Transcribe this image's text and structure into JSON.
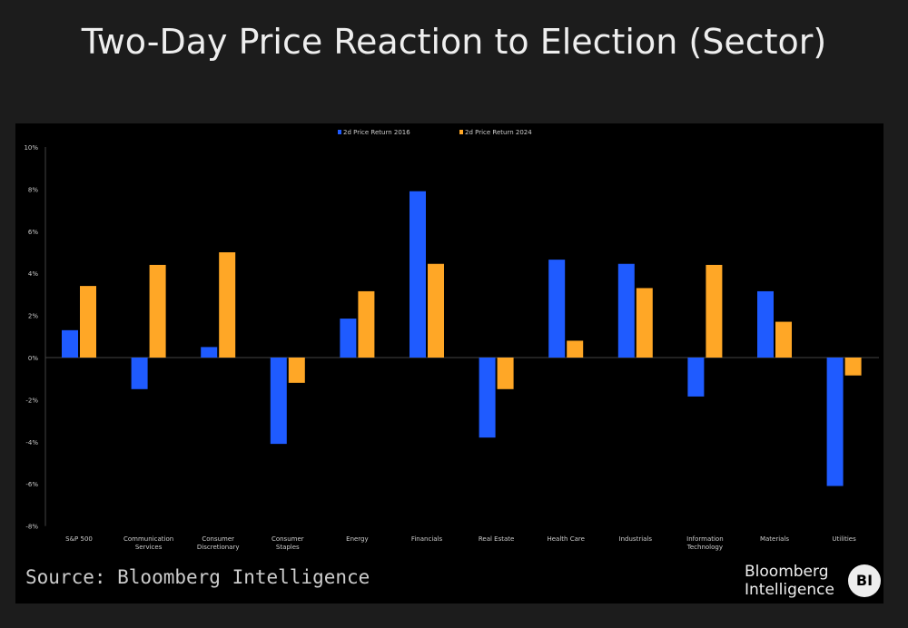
{
  "title": "Two-Day Price Reaction to Election (Sector)",
  "source": "Source: Bloomberg Intelligence",
  "logo": {
    "line1": "Bloomberg",
    "line2": "Intelligence",
    "badge": "BI"
  },
  "chart_data": {
    "type": "bar",
    "title": "",
    "xlabel": "",
    "ylabel": "",
    "ylim": [
      -8,
      10
    ],
    "yticks": [
      10,
      8,
      6,
      4,
      2,
      0,
      -2,
      -4,
      -6,
      -8
    ],
    "ytick_labels": [
      "10%",
      "8%",
      "6%",
      "4%",
      "2%",
      "0%",
      "-2%",
      "-4%",
      "-6%",
      "-8%"
    ],
    "legend_position": "top",
    "grid": false,
    "categories": [
      "S&P 500",
      "Communication Services",
      "Consumer Discretionary",
      "Consumer Staples",
      "Energy",
      "Financials",
      "Real Estate",
      "Health Care",
      "Industrials",
      "Information Technology",
      "Materials",
      "Utilities"
    ],
    "series": [
      {
        "name": "2d Price Return 2016",
        "color": "#1f5bff",
        "values": [
          1.3,
          -1.5,
          0.5,
          -4.1,
          1.85,
          7.9,
          -3.8,
          4.65,
          4.45,
          -1.85,
          3.15,
          -6.1
        ]
      },
      {
        "name": "2d Price Return 2024",
        "color": "#ffa726",
        "values": [
          3.4,
          4.4,
          5.0,
          -1.2,
          3.15,
          4.45,
          -1.5,
          0.8,
          3.3,
          4.4,
          1.7,
          -0.85
        ]
      }
    ]
  }
}
